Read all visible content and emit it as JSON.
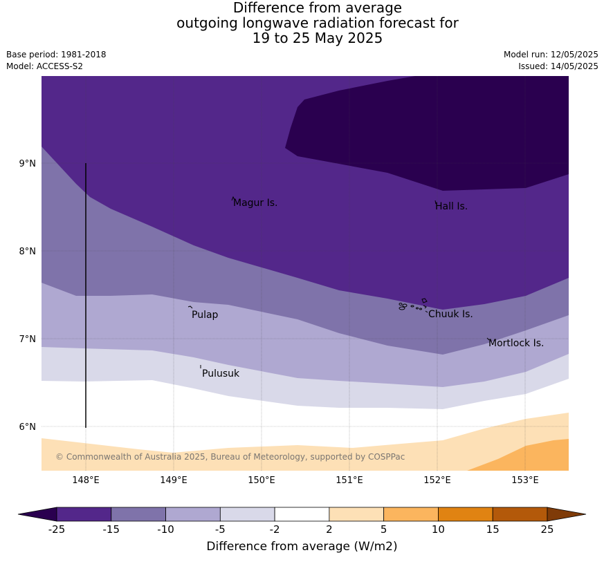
{
  "title": {
    "line1": "Difference from average",
    "line2": "outgoing longwave radiation forecast for",
    "line3": "19 to 25 May 2025"
  },
  "meta": {
    "base_period": "Base period: 1981-2018",
    "model": "Model: ACCESS-S2",
    "model_run": "Model run: 12/05/2025",
    "issued": "Issued: 14/05/2025"
  },
  "map": {
    "lon_labels": [
      "148°E",
      "149°E",
      "150°E",
      "151°E",
      "152°E",
      "153°E"
    ],
    "lat_labels": [
      "9°N",
      "8°N",
      "7°N",
      "6°N"
    ],
    "places": [
      "Magur Is.",
      "Hall Is.",
      "Pulap",
      "Chuuk Is.",
      "Mortlock Is.",
      "Pulusuk"
    ],
    "copyright": "© Commonwealth of Australia 2025, Bureau of Meteorology, supported by COSPPac",
    "colors": {
      "lt_-25": "#2a004f",
      "-25_-15": "#53278a",
      "-15_-10": "#7f73aa",
      "-10_-5": "#afa8d1",
      "-5_-2": "#d9d9e9",
      "-2_2": "#ffffff",
      "2_5": "#fde0b6",
      "5_10": "#fbb55e",
      "10_15": "#e08312",
      "15_25": "#b3590a",
      "gt_25": "#7f3b08"
    }
  },
  "colorbar": {
    "ticks": [
      "-25",
      "-15",
      "-10",
      "-5",
      "-2",
      "2",
      "5",
      "10",
      "15",
      "25"
    ],
    "colors": [
      "#53278a",
      "#7f73aa",
      "#afa8d1",
      "#d9d9e9",
      "#ffffff",
      "#fde0b6",
      "#fbb55e",
      "#e08312",
      "#b3590a"
    ],
    "under_color": "#2a004f",
    "over_color": "#7f3b08",
    "label": "Difference from average (W/m2)"
  }
}
